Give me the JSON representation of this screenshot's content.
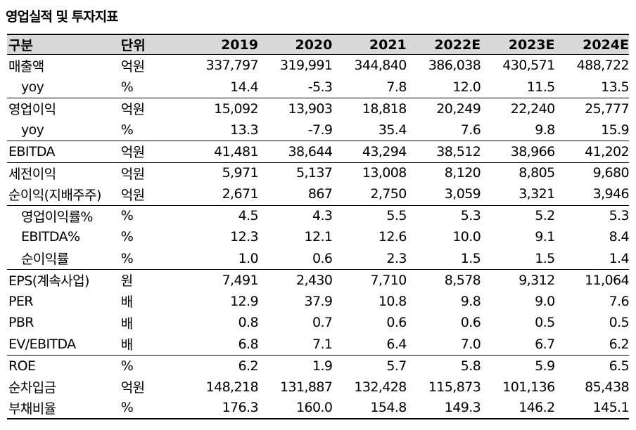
{
  "title": "영업실적 및 투자지표",
  "header": {
    "label": "구분",
    "unit": "단위",
    "years": [
      "2019",
      "2020",
      "2021",
      "2022E",
      "2023E",
      "2024E"
    ]
  },
  "rows": [
    {
      "label": "매출액",
      "unit": "억원",
      "indent": false,
      "sep": false,
      "values": [
        "337,797",
        "319,991",
        "344,840",
        "386,038",
        "430,571",
        "488,722"
      ]
    },
    {
      "label": "yoy",
      "unit": "%",
      "indent": true,
      "sep": false,
      "values": [
        "14.4",
        "-5.3",
        "7.8",
        "12.0",
        "11.5",
        "13.5"
      ]
    },
    {
      "label": "영업이익",
      "unit": "억원",
      "indent": false,
      "sep": true,
      "values": [
        "15,092",
        "13,903",
        "18,818",
        "20,249",
        "22,240",
        "25,777"
      ]
    },
    {
      "label": "yoy",
      "unit": "%",
      "indent": true,
      "sep": false,
      "values": [
        "13.3",
        "-7.9",
        "35.4",
        "7.6",
        "9.8",
        "15.9"
      ]
    },
    {
      "label": "EBITDA",
      "unit": "억원",
      "indent": false,
      "sep": true,
      "values": [
        "41,481",
        "38,644",
        "43,294",
        "38,512",
        "38,966",
        "41,202"
      ]
    },
    {
      "label": "세전이익",
      "unit": "억원",
      "indent": false,
      "sep": true,
      "values": [
        "5,971",
        "5,137",
        "13,008",
        "8,120",
        "8,805",
        "9,680"
      ]
    },
    {
      "label": "순이익(지배주주)",
      "unit": "억원",
      "indent": false,
      "sep": false,
      "values": [
        "2,671",
        "867",
        "2,750",
        "3,059",
        "3,321",
        "3,946"
      ]
    },
    {
      "label": "영업이익률%",
      "unit": "%",
      "indent": true,
      "sep": true,
      "values": [
        "4.5",
        "4.3",
        "5.5",
        "5.3",
        "5.2",
        "5.3"
      ]
    },
    {
      "label": "EBITDA%",
      "unit": "%",
      "indent": true,
      "sep": false,
      "values": [
        "12.3",
        "12.1",
        "12.6",
        "10.0",
        "9.1",
        "8.4"
      ]
    },
    {
      "label": "순이익률",
      "unit": "%",
      "indent": true,
      "sep": false,
      "values": [
        "1.0",
        "0.6",
        "2.3",
        "1.5",
        "1.5",
        "1.4"
      ]
    },
    {
      "label": "EPS(계속사업)",
      "unit": "원",
      "indent": false,
      "sep": true,
      "values": [
        "7,491",
        "2,430",
        "7,710",
        "8,578",
        "9,312",
        "11,064"
      ]
    },
    {
      "label": "PER",
      "unit": "배",
      "indent": false,
      "sep": false,
      "values": [
        "12.9",
        "37.9",
        "10.8",
        "9.8",
        "9.0",
        "7.6"
      ]
    },
    {
      "label": "PBR",
      "unit": "배",
      "indent": false,
      "sep": false,
      "values": [
        "0.8",
        "0.7",
        "0.6",
        "0.6",
        "0.5",
        "0.5"
      ]
    },
    {
      "label": "EV/EBITDA",
      "unit": "배",
      "indent": false,
      "sep": false,
      "values": [
        "6.8",
        "7.1",
        "6.4",
        "7.0",
        "6.7",
        "6.2"
      ]
    },
    {
      "label": "ROE",
      "unit": "%",
      "indent": false,
      "sep": true,
      "values": [
        "6.2",
        "1.9",
        "5.7",
        "5.8",
        "5.9",
        "6.5"
      ]
    },
    {
      "label": "순차입금",
      "unit": "억원",
      "indent": false,
      "sep": false,
      "values": [
        "148,218",
        "131,887",
        "132,428",
        "115,873",
        "101,136",
        "85,438"
      ]
    },
    {
      "label": "부채비율",
      "unit": "%",
      "indent": false,
      "sep": false,
      "values": [
        "176.3",
        "160.0",
        "154.8",
        "149.3",
        "146.2",
        "145.1"
      ]
    }
  ]
}
